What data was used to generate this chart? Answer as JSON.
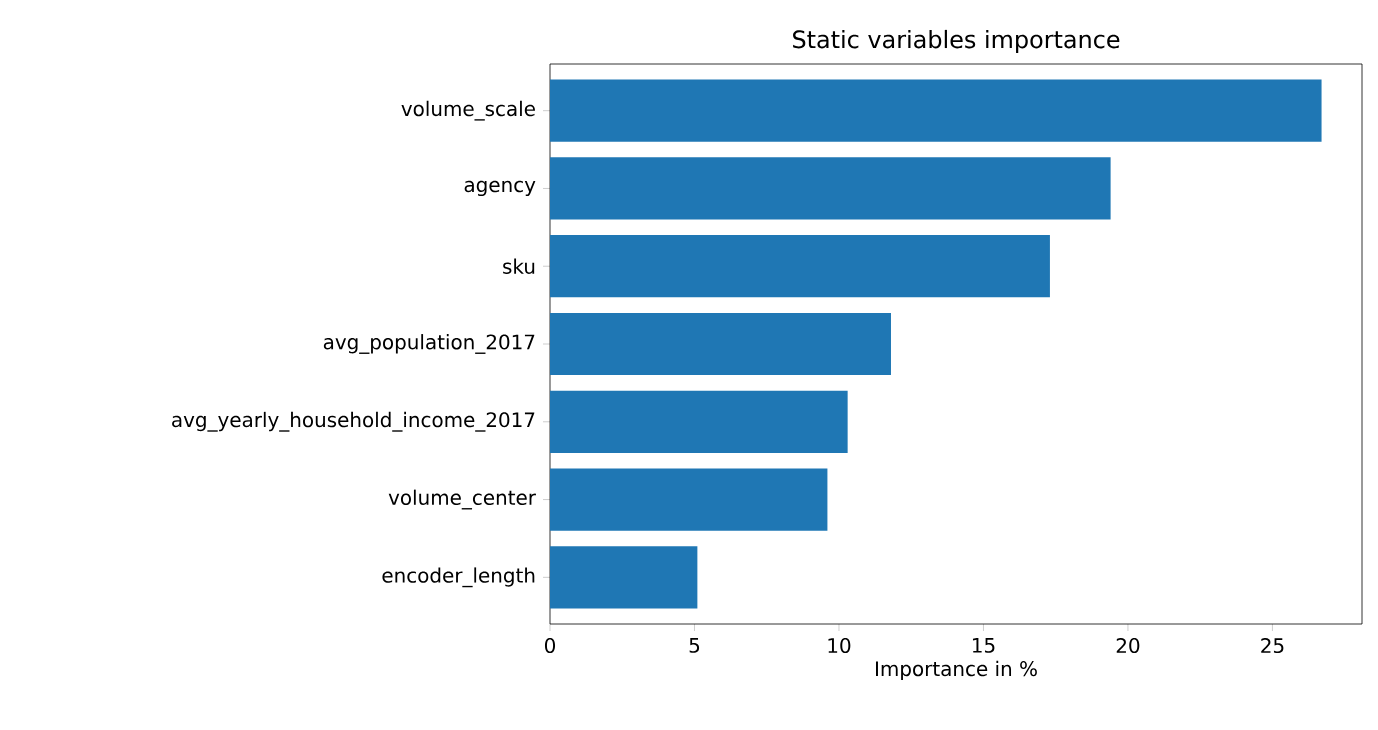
{
  "chart_data": {
    "type": "bar",
    "orientation": "horizontal",
    "title": "Static variables importance",
    "xlabel": "Importance in %",
    "categories": [
      "volume_scale",
      "agency",
      "sku",
      "avg_population_2017",
      "avg_yearly_household_income_2017",
      "volume_center",
      "encoder_length"
    ],
    "values": [
      26.7,
      19.4,
      17.3,
      11.8,
      10.3,
      9.6,
      5.1
    ],
    "color": "#1f77b4",
    "xlim": [
      0,
      28.1
    ],
    "xticks": [
      0,
      5,
      10,
      15,
      20,
      25
    ]
  }
}
